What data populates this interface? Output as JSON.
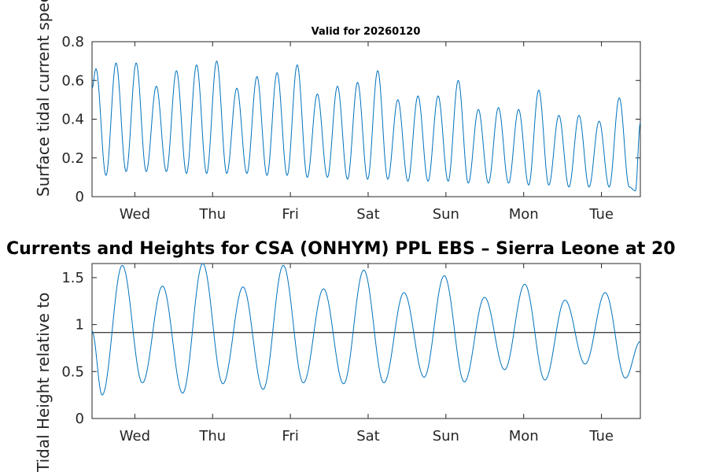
{
  "page": {
    "main_title": "Currents and Heights for CSA (ONHYM) PPL EBS  – Sierra Leone at 20"
  },
  "chart_data": [
    {
      "type": "line",
      "title": "Valid for 20260120",
      "xlabel": "",
      "ylabel": "Surface tidal current speed, kn",
      "ylim": [
        0,
        0.8
      ],
      "yticks": [
        0,
        0.2,
        0.4,
        0.6,
        0.8
      ],
      "ytick_labels": [
        "0",
        "0.2",
        "0.4",
        "0.6",
        "0.8"
      ],
      "xlim": [
        0,
        7.05
      ],
      "xticks": [
        0.55,
        1.55,
        2.55,
        3.55,
        4.55,
        5.55,
        6.55
      ],
      "xtick_labels": [
        "Wed",
        "Thu",
        "Fri",
        "Sat",
        "Sun",
        "Mon",
        "Tue"
      ],
      "color": "#0072bd",
      "series": [
        {
          "name": "Current speed",
          "peaks": [
            0.66,
            0.69,
            0.69,
            0.57,
            0.65,
            0.68,
            0.7,
            0.56,
            0.62,
            0.64,
            0.68,
            0.53,
            0.57,
            0.59,
            0.65,
            0.5,
            0.52,
            0.52,
            0.6,
            0.45,
            0.46,
            0.45,
            0.55,
            0.42,
            0.42,
            0.39,
            0.51
          ],
          "troughs": [
            0.11,
            0.13,
            0.13,
            0.13,
            0.12,
            0.12,
            0.12,
            0.12,
            0.11,
            0.11,
            0.1,
            0.1,
            0.09,
            0.09,
            0.09,
            0.08,
            0.08,
            0.08,
            0.07,
            0.07,
            0.07,
            0.06,
            0.06,
            0.05,
            0.05,
            0.05,
            0.05,
            0.03
          ],
          "period_days": 0.2588,
          "first_peak_day": 0.05,
          "end_value": 0.38
        }
      ]
    },
    {
      "type": "line",
      "title": "",
      "xlabel": "",
      "ylabel": "Tidal Height relative to",
      "ylim": [
        0,
        1.65
      ],
      "yticks": [
        0,
        0.5,
        1,
        1.5
      ],
      "ytick_labels": [
        "0",
        "0.5",
        "1",
        "1.5"
      ],
      "xlim": [
        0,
        7.05
      ],
      "xticks": [
        0.55,
        1.55,
        2.55,
        3.55,
        4.55,
        5.55,
        6.55
      ],
      "xtick_labels": [
        "Wed",
        "Thu",
        "Fri",
        "Sat",
        "Sun",
        "Mon",
        "Tue"
      ],
      "color": "#0072bd",
      "reference_line": 0.915,
      "series": [
        {
          "name": "Tidal height",
          "start_value": 0.93,
          "troughs": [
            0.25,
            0.38,
            0.27,
            0.37,
            0.31,
            0.38,
            0.37,
            0.38,
            0.44,
            0.39,
            0.52,
            0.41,
            0.58,
            0.43
          ],
          "peaks": [
            1.63,
            1.41,
            1.65,
            1.4,
            1.63,
            1.38,
            1.58,
            1.34,
            1.52,
            1.29,
            1.43,
            1.26,
            1.34
          ],
          "first_trough_day": 0.13,
          "period_days": 0.5175,
          "end_value": 0.82
        }
      ]
    }
  ]
}
